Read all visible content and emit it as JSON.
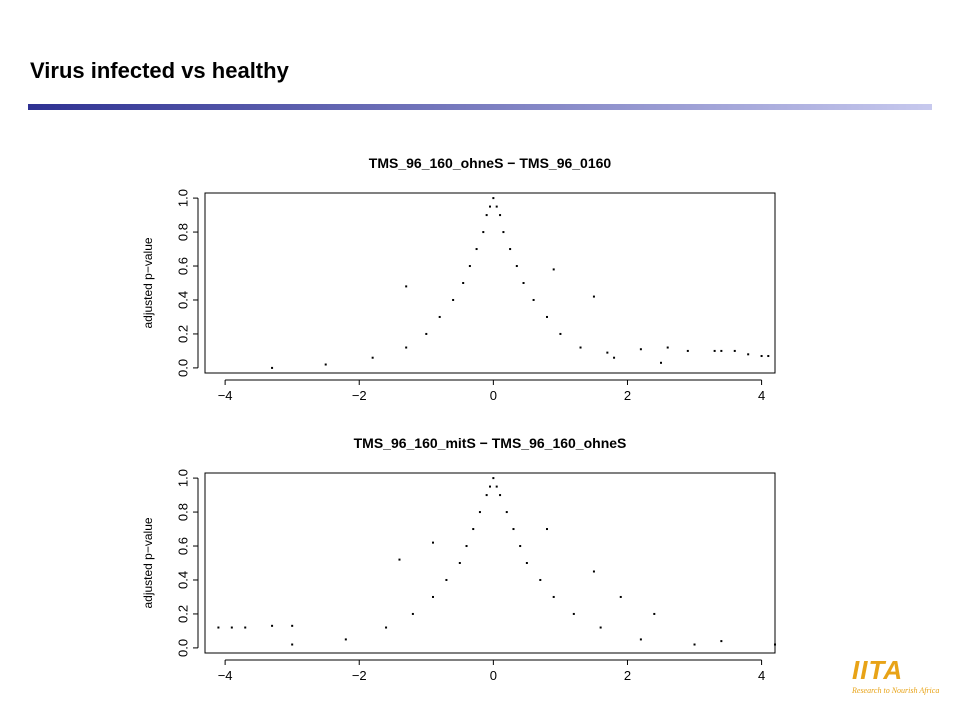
{
  "slide": {
    "title": "Virus infected vs healthy",
    "accent_gradient": [
      "#2e3192",
      "#c7c9ee"
    ]
  },
  "logo": {
    "mark": "IITA",
    "tagline": "Research to Nourish Africa",
    "color": "#e8a317"
  },
  "chart_data": [
    {
      "type": "scatter",
      "title": "TMS_96_160_ohneS − TMS_96_0160",
      "xlabel": "",
      "ylabel": "adjusted p−value",
      "xlim": [
        -4.3,
        4.2
      ],
      "ylim": [
        -0.03,
        1.03
      ],
      "xticks": [
        -4,
        -2,
        0,
        2,
        4
      ],
      "yticks": [
        0.0,
        0.2,
        0.4,
        0.6,
        0.8,
        1.0
      ],
      "xtick_labels": [
        "−4",
        "−2",
        "0",
        "2",
        "4"
      ],
      "ytick_labels": [
        "0.0",
        "0.2",
        "0.4",
        "0.6",
        "0.8",
        "1.0"
      ],
      "grid": false,
      "marker_color": "#000000",
      "points": [
        [
          0.0,
          1.0
        ],
        [
          -0.05,
          0.95
        ],
        [
          0.05,
          0.95
        ],
        [
          -0.1,
          0.9
        ],
        [
          0.1,
          0.9
        ],
        [
          -0.15,
          0.8
        ],
        [
          0.15,
          0.8
        ],
        [
          -0.25,
          0.7
        ],
        [
          0.25,
          0.7
        ],
        [
          -0.35,
          0.6
        ],
        [
          0.35,
          0.6
        ],
        [
          -0.45,
          0.5
        ],
        [
          0.45,
          0.5
        ],
        [
          -0.6,
          0.4
        ],
        [
          0.6,
          0.4
        ],
        [
          -0.8,
          0.3
        ],
        [
          0.8,
          0.3
        ],
        [
          -1.0,
          0.2
        ],
        [
          1.0,
          0.2
        ],
        [
          -1.3,
          0.12
        ],
        [
          1.3,
          0.12
        ],
        [
          -1.8,
          0.06
        ],
        [
          1.8,
          0.06
        ],
        [
          -2.5,
          0.02
        ],
        [
          2.5,
          0.03
        ],
        [
          -3.3,
          0.0
        ],
        [
          -1.3,
          0.48
        ],
        [
          0.9,
          0.58
        ],
        [
          1.5,
          0.42
        ],
        [
          1.7,
          0.09
        ],
        [
          2.2,
          0.11
        ],
        [
          2.6,
          0.12
        ],
        [
          2.9,
          0.1
        ],
        [
          3.3,
          0.1
        ],
        [
          3.4,
          0.1
        ],
        [
          3.6,
          0.1
        ],
        [
          3.8,
          0.08
        ],
        [
          4.0,
          0.07
        ],
        [
          4.1,
          0.07
        ]
      ]
    },
    {
      "type": "scatter",
      "title": "TMS_96_160_mitS − TMS_96_160_ohneS",
      "xlabel": "",
      "ylabel": "adjusted p−value",
      "xlim": [
        -4.3,
        4.2
      ],
      "ylim": [
        -0.03,
        1.03
      ],
      "xticks": [
        -4,
        -2,
        0,
        2,
        4
      ],
      "yticks": [
        0.0,
        0.2,
        0.4,
        0.6,
        0.8,
        1.0
      ],
      "xtick_labels": [
        "−4",
        "−2",
        "0",
        "2",
        "4"
      ],
      "ytick_labels": [
        "0.0",
        "0.2",
        "0.4",
        "0.6",
        "0.8",
        "1.0"
      ],
      "grid": false,
      "marker_color": "#000000",
      "points": [
        [
          0.0,
          1.0
        ],
        [
          -0.05,
          0.95
        ],
        [
          0.05,
          0.95
        ],
        [
          -0.1,
          0.9
        ],
        [
          0.1,
          0.9
        ],
        [
          -0.2,
          0.8
        ],
        [
          0.2,
          0.8
        ],
        [
          -0.3,
          0.7
        ],
        [
          0.3,
          0.7
        ],
        [
          -0.4,
          0.6
        ],
        [
          0.4,
          0.6
        ],
        [
          -0.5,
          0.5
        ],
        [
          0.5,
          0.5
        ],
        [
          -0.7,
          0.4
        ],
        [
          0.7,
          0.4
        ],
        [
          -0.9,
          0.3
        ],
        [
          0.9,
          0.3
        ],
        [
          -1.2,
          0.2
        ],
        [
          1.2,
          0.2
        ],
        [
          -1.6,
          0.12
        ],
        [
          1.6,
          0.12
        ],
        [
          -2.2,
          0.05
        ],
        [
          2.2,
          0.05
        ],
        [
          -3.0,
          0.02
        ],
        [
          3.0,
          0.02
        ],
        [
          -4.1,
          0.12
        ],
        [
          -3.9,
          0.12
        ],
        [
          -3.7,
          0.12
        ],
        [
          -3.3,
          0.13
        ],
        [
          -3.0,
          0.13
        ],
        [
          -1.4,
          0.52
        ],
        [
          -0.9,
          0.62
        ],
        [
          0.8,
          0.7
        ],
        [
          1.5,
          0.45
        ],
        [
          1.9,
          0.3
        ],
        [
          2.4,
          0.2
        ],
        [
          3.4,
          0.04
        ],
        [
          4.2,
          0.02
        ]
      ]
    }
  ]
}
